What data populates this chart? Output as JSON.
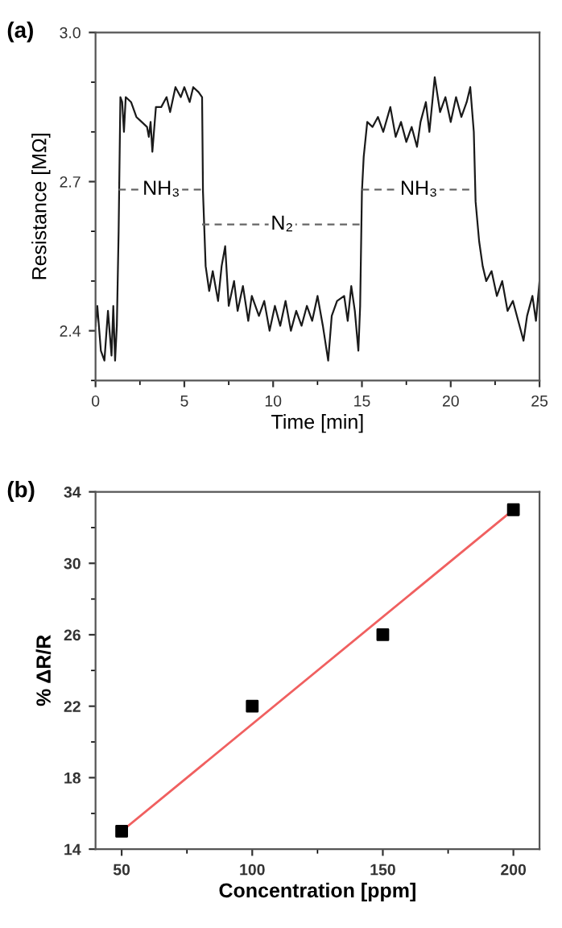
{
  "chart_data": [
    {
      "type": "line",
      "title": "(a)",
      "xlabel": "Time [min]",
      "ylabel": "Resistance [MΩ]",
      "xlim": [
        0,
        25
      ],
      "ylim": [
        2.3,
        3.0
      ],
      "xticks": [
        0,
        5,
        10,
        15,
        20,
        25
      ],
      "yticks": [
        2.4,
        2.7,
        {
          "value": 3.0,
          "label": "3.0"
        }
      ],
      "grid": false,
      "legend": false,
      "series": [
        {
          "color": "#1a1a1a",
          "line_style": "solid",
          "x": [
            0,
            0.1,
            0.3,
            0.5,
            0.7,
            0.9,
            1.0,
            1.1,
            1.2,
            1.3,
            1.4,
            1.5,
            1.6,
            1.7,
            2.0,
            2.3,
            2.6,
            2.9,
            3.0,
            3.1,
            3.2,
            3.4,
            3.7,
            4.0,
            4.2,
            4.5,
            4.8,
            5.0,
            5.3,
            5.5,
            5.8,
            6.0,
            6.05,
            6.2,
            6.4,
            6.6,
            6.9,
            7.1,
            7.3,
            7.5,
            7.8,
            8.0,
            8.3,
            8.6,
            8.8,
            9.2,
            9.5,
            9.8,
            10.1,
            10.4,
            10.7,
            11.0,
            11.3,
            11.6,
            11.9,
            12.2,
            12.5,
            12.8,
            13.1,
            13.3,
            13.6,
            14.0,
            14.2,
            14.4,
            14.6,
            14.8,
            14.9,
            15.0,
            15.1,
            15.3,
            15.6,
            15.9,
            16.2,
            16.6,
            16.9,
            17.2,
            17.5,
            17.8,
            18.1,
            18.3,
            18.6,
            18.8,
            19.1,
            19.4,
            19.7,
            20.0,
            20.3,
            20.6,
            20.9,
            21.1,
            21.3,
            21.4,
            21.6,
            21.8,
            22.0,
            22.3,
            22.6,
            22.9,
            23.2,
            23.5,
            23.8,
            24.1,
            24.3,
            24.6,
            24.8,
            25.0
          ],
          "values": [
            2.41,
            2.45,
            2.36,
            2.34,
            2.44,
            2.35,
            2.45,
            2.34,
            2.41,
            2.6,
            2.87,
            2.86,
            2.8,
            2.87,
            2.86,
            2.83,
            2.82,
            2.81,
            2.79,
            2.82,
            2.76,
            2.85,
            2.85,
            2.87,
            2.84,
            2.89,
            2.87,
            2.89,
            2.86,
            2.89,
            2.88,
            2.87,
            2.68,
            2.53,
            2.48,
            2.52,
            2.46,
            2.53,
            2.57,
            2.45,
            2.5,
            2.44,
            2.49,
            2.42,
            2.47,
            2.43,
            2.46,
            2.4,
            2.45,
            2.41,
            2.46,
            2.4,
            2.44,
            2.41,
            2.45,
            2.42,
            2.47,
            2.41,
            2.34,
            2.43,
            2.46,
            2.47,
            2.42,
            2.49,
            2.44,
            2.36,
            2.45,
            2.68,
            2.75,
            2.82,
            2.81,
            2.83,
            2.8,
            2.85,
            2.79,
            2.82,
            2.78,
            2.81,
            2.77,
            2.82,
            2.86,
            2.8,
            2.91,
            2.84,
            2.87,
            2.82,
            2.87,
            2.83,
            2.86,
            2.89,
            2.8,
            2.66,
            2.58,
            2.53,
            2.5,
            2.52,
            2.47,
            2.5,
            2.44,
            2.46,
            2.42,
            2.38,
            2.43,
            2.47,
            2.42,
            2.5
          ]
        },
        {
          "color": "#666666",
          "line_style": "dashed",
          "x": [
            1.3,
            6.0
          ],
          "values": [
            2.684,
            2.684
          ]
        },
        {
          "color": "#666666",
          "line_style": "dashed",
          "x": [
            6.0,
            15.0
          ],
          "values": [
            2.614,
            2.614
          ]
        },
        {
          "color": "#666666",
          "line_style": "dashed",
          "x": [
            15.0,
            21.3
          ],
          "values": [
            2.684,
            2.684
          ]
        }
      ],
      "annotations": [
        {
          "text": "NH₃",
          "x": 3.7,
          "y": 2.684
        },
        {
          "text": "N₂",
          "x": 10.5,
          "y": 2.614
        },
        {
          "text": "NH₃",
          "x": 18.2,
          "y": 2.684
        }
      ]
    },
    {
      "type": "scatter",
      "title": "(b)",
      "xlabel": "Concentration [ppm]",
      "ylabel": "% ΔR/R",
      "xlim": [
        40,
        210
      ],
      "ylim": [
        14,
        34
      ],
      "xticks": [
        50,
        100,
        150,
        200
      ],
      "yticks": [
        14,
        18,
        22,
        26,
        30,
        34
      ],
      "grid": false,
      "legend": false,
      "series": [
        {
          "type": "line",
          "color": "#f06060",
          "line_style": "solid",
          "marker": "none",
          "x": [
            50,
            200
          ],
          "values": [
            15,
            33
          ]
        },
        {
          "type": "scatter",
          "color": "#000000",
          "marker": "square",
          "x": [
            50,
            100,
            150,
            200
          ],
          "values": [
            15,
            22,
            26,
            33
          ]
        }
      ]
    }
  ]
}
